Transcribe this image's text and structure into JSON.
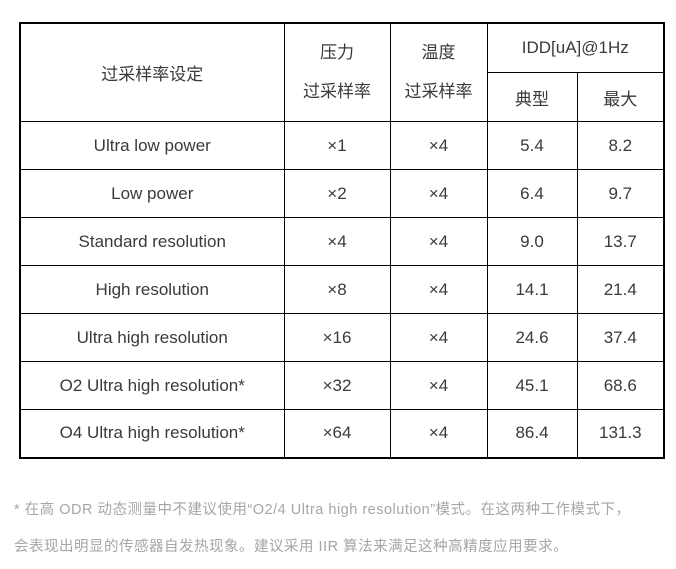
{
  "table": {
    "header": {
      "setting": "过采样率设定",
      "pressure_line1": "压力",
      "pressure_line2": "过采样率",
      "temperature_line1": "温度",
      "temperature_line2": "过采样率",
      "idd": "IDD[uA]@1Hz",
      "typical": "典型",
      "max": "最大"
    },
    "rows": [
      {
        "setting": "Ultra low power",
        "pressure_osr": "×1",
        "temperature_osr": "×4",
        "typical": "5.4",
        "max": "8.2"
      },
      {
        "setting": "Low power",
        "pressure_osr": "×2",
        "temperature_osr": "×4",
        "typical": "6.4",
        "max": "9.7"
      },
      {
        "setting": "Standard resolution",
        "pressure_osr": "×4",
        "temperature_osr": "×4",
        "typical": "9.0",
        "max": "13.7"
      },
      {
        "setting": "High resolution",
        "pressure_osr": "×8",
        "temperature_osr": "×4",
        "typical": "14.1",
        "max": "21.4"
      },
      {
        "setting": "Ultra high resolution",
        "pressure_osr": "×16",
        "temperature_osr": "×4",
        "typical": "24.6",
        "max": "37.4"
      },
      {
        "setting": "O2 Ultra high resolution*",
        "pressure_osr": "×32",
        "temperature_osr": "×4",
        "typical": "45.1",
        "max": "68.6"
      },
      {
        "setting": "O4 Ultra high resolution*",
        "pressure_osr": "×64",
        "temperature_osr": "×4",
        "typical": "86.4",
        "max": "131.3"
      }
    ]
  },
  "footnote": {
    "line1": "* 在高 ODR 动态测量中不建议使用“O2/4 Ultra high resolution”模式。在这两种工作模式下，",
    "line2": "会表现出明显的传感器自发热现象。建议采用 IIR 算法来满足这种高精度应用要求。"
  },
  "colors": {
    "border": "#000000",
    "table_text": "#3a3a3a",
    "footnote_text": "#a6a6a6",
    "background": "#ffffff"
  }
}
